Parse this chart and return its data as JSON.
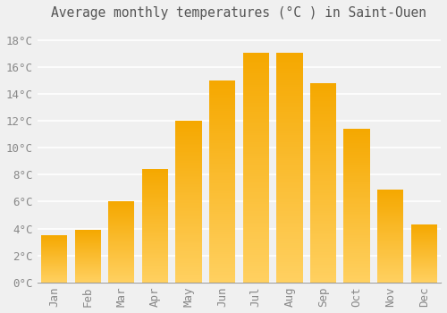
{
  "title": "Average monthly temperatures (°C ) in Saint-Ouen",
  "months": [
    "Jan",
    "Feb",
    "Mar",
    "Apr",
    "May",
    "Jun",
    "Jul",
    "Aug",
    "Sep",
    "Oct",
    "Nov",
    "Dec"
  ],
  "values": [
    3.5,
    3.9,
    6.0,
    8.4,
    12.0,
    15.0,
    17.1,
    17.1,
    14.8,
    11.4,
    6.9,
    4.3
  ],
  "bar_color_dark": "#F5A800",
  "bar_color_light": "#FFD060",
  "background_color": "#F0F0F0",
  "grid_color": "#FFFFFF",
  "text_color": "#888888",
  "ylim": [
    0,
    19
  ],
  "yticks": [
    0,
    2,
    4,
    6,
    8,
    10,
    12,
    14,
    16,
    18
  ],
  "title_fontsize": 10.5,
  "tick_fontsize": 9,
  "bar_width": 0.78,
  "gradient_steps": 100
}
